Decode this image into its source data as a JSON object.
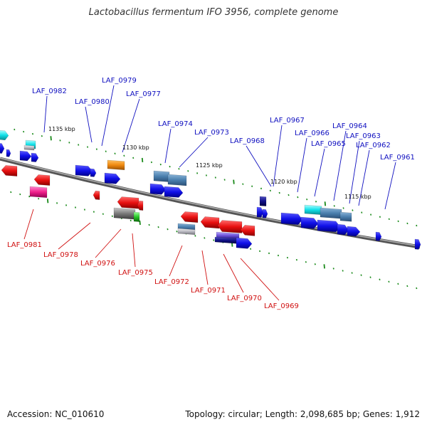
{
  "title": "Lactobacillus fermentum IFO 3956, complete genome",
  "footer": {
    "accession": "Accession: NC_010610",
    "stats": "Topology: circular; Length: 2,098,685 bp; Genes: 1,912"
  },
  "colors": {
    "forward_label": "#1010c0",
    "reverse_label": "#d01010",
    "backbone": "#777777",
    "tick": "#1a8a1a"
  },
  "kbp_labels": [
    "1135 kbp",
    "1130 kbp",
    "1125 kbp",
    "1120 kbp",
    "1115 kbp"
  ],
  "forward_labels": [
    "LAF_0982",
    "LAF_0980",
    "LAF_0979",
    "LAF_0977",
    "LAF_0974",
    "LAF_0973",
    "LAF_0968",
    "LAF_0967",
    "LAF_0966",
    "LAF_0965",
    "LAF_0964",
    "LAF_0963",
    "LAF_0962",
    "LAF_0961"
  ],
  "reverse_labels": [
    "LAF_0981",
    "LAF_0978",
    "LAF_0976",
    "LAF_0975",
    "LAF_0972",
    "LAF_0971",
    "LAF_0970",
    "LAF_0969"
  ]
}
